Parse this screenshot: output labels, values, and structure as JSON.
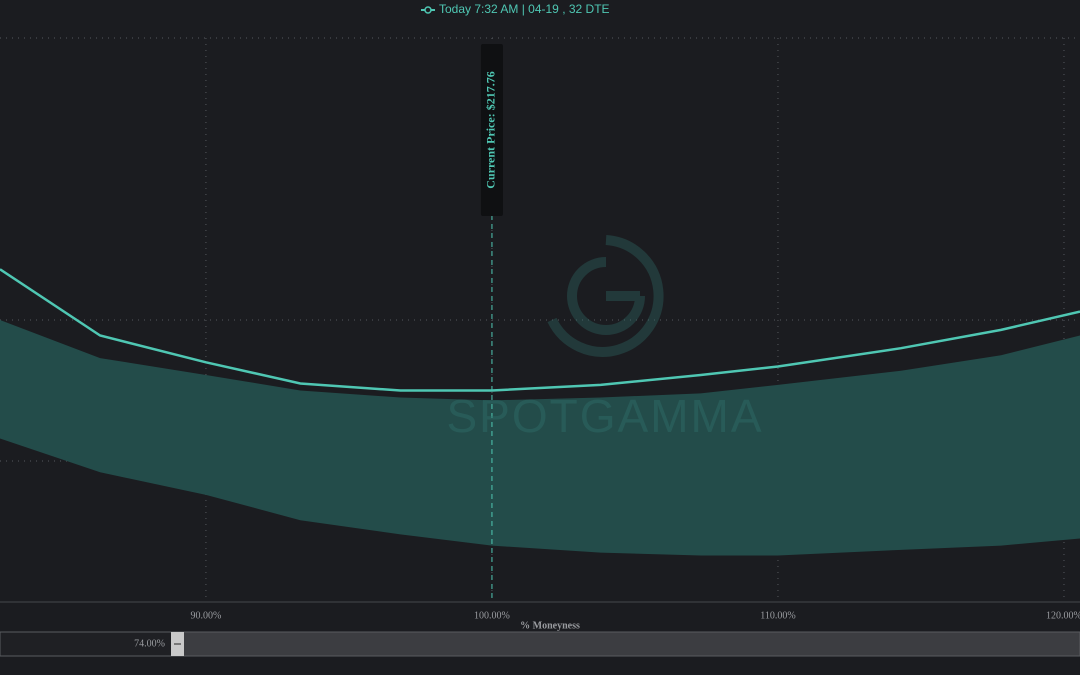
{
  "chart_data": {
    "type": "line",
    "x_label": "% Moneyness",
    "x": [
      82.8,
      86.3,
      90,
      93.3,
      96.8,
      100,
      103.8,
      107.3,
      110,
      114.3,
      117.8,
      120.56
    ],
    "xlim": [
      82.8,
      120.56
    ],
    "xticks": [
      {
        "value": 90,
        "label": "90.00%"
      },
      {
        "value": 100,
        "label": "100.00%"
      },
      {
        "value": 110,
        "label": "110.00%"
      },
      {
        "value": 120,
        "label": "120.00%"
      }
    ],
    "ylim": [
      0,
      40
    ],
    "grid": true,
    "series": [
      {
        "name": "Today 7:32 AM | 04-19 , 32 DTE",
        "color": "#4fc7b3",
        "values": [
          23.6,
          18.9,
          17.0,
          15.5,
          15.0,
          15.0,
          15.4,
          16.1,
          16.7,
          18.0,
          19.3,
          20.6
        ]
      }
    ],
    "range": {
      "color": "#234c4a",
      "upper": [
        20.0,
        17.3,
        16.1,
        15.0,
        14.5,
        14.3,
        14.5,
        14.8,
        15.4,
        16.4,
        17.5,
        18.9
      ],
      "lower": [
        11.6,
        9.2,
        7.6,
        5.8,
        4.8,
        4.0,
        3.5,
        3.3,
        3.3,
        3.7,
        4.0,
        4.5
      ]
    },
    "annotation": {
      "x": 100,
      "label": "Current Price: $217.76"
    },
    "watermark": "SPOTGAMMA",
    "range_slider": {
      "label": "74.00%"
    }
  }
}
